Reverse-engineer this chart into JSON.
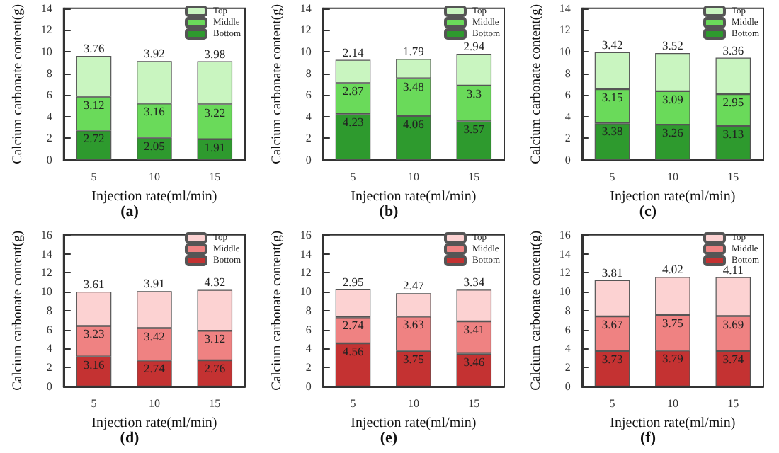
{
  "chart_data": [
    {
      "type": "bar",
      "title": "(a)",
      "xlabel": "Injection rate(ml/min)",
      "ylabel": "Calcium carbonate content(g)",
      "categories": [
        "5",
        "10",
        "15"
      ],
      "stacked": true,
      "data_labels": true,
      "legend": "top right",
      "grid": false,
      "ylim": [
        0,
        14
      ],
      "yticks": [
        0,
        2,
        4,
        6,
        8,
        10,
        12,
        14
      ],
      "series": [
        {
          "name": "Bottom",
          "color": "#2e9a2e",
          "values": [
            2.72,
            2.05,
            1.91
          ]
        },
        {
          "name": "Middle",
          "color": "#6ada5a",
          "values": [
            3.12,
            3.16,
            3.22
          ]
        },
        {
          "name": "Top",
          "color": "#c9f5c0",
          "values": [
            3.76,
            3.92,
            3.98
          ]
        }
      ]
    },
    {
      "type": "bar",
      "title": "(b)",
      "xlabel": "Injection rate(ml/min)",
      "ylabel": "Calcium carbonate content(g)",
      "categories": [
        "5",
        "10",
        "15"
      ],
      "stacked": true,
      "data_labels": true,
      "legend": "top right",
      "grid": false,
      "ylim": [
        0,
        14
      ],
      "yticks": [
        0,
        2,
        4,
        6,
        8,
        10,
        12,
        14
      ],
      "series": [
        {
          "name": "Bottom",
          "color": "#2e9a2e",
          "values": [
            4.23,
            4.06,
            3.57
          ]
        },
        {
          "name": "Middle",
          "color": "#6ada5a",
          "values": [
            2.87,
            3.48,
            3.3
          ]
        },
        {
          "name": "Top",
          "color": "#c9f5c0",
          "values": [
            2.14,
            1.79,
            2.94
          ]
        }
      ]
    },
    {
      "type": "bar",
      "title": "(c)",
      "xlabel": "Injection rate(ml/min)",
      "ylabel": "Calcium carbonate content(g)",
      "categories": [
        "5",
        "10",
        "15"
      ],
      "stacked": true,
      "data_labels": true,
      "legend": "top right",
      "grid": false,
      "ylim": [
        0,
        14
      ],
      "yticks": [
        0,
        2,
        4,
        6,
        8,
        10,
        12,
        14
      ],
      "series": [
        {
          "name": "Bottom",
          "color": "#2e9a2e",
          "values": [
            3.38,
            3.26,
            3.13
          ]
        },
        {
          "name": "Middle",
          "color": "#6ada5a",
          "values": [
            3.15,
            3.09,
            2.95
          ]
        },
        {
          "name": "Top",
          "color": "#c9f5c0",
          "values": [
            3.42,
            3.52,
            3.36
          ]
        }
      ]
    },
    {
      "type": "bar",
      "title": "(d)",
      "xlabel": "Injection rate(ml/min)",
      "ylabel": "Calcium carbonate content(g)",
      "categories": [
        "5",
        "10",
        "15"
      ],
      "stacked": true,
      "data_labels": true,
      "legend": "top right",
      "grid": false,
      "ylim": [
        0,
        16
      ],
      "yticks": [
        0,
        2,
        4,
        6,
        8,
        10,
        12,
        14,
        16
      ],
      "series": [
        {
          "name": "Bottom",
          "color": "#c43232",
          "values": [
            3.16,
            2.74,
            2.76
          ]
        },
        {
          "name": "Middle",
          "color": "#ef8282",
          "values": [
            3.23,
            3.42,
            3.12
          ]
        },
        {
          "name": "Top",
          "color": "#fcd2d2",
          "values": [
            3.61,
            3.91,
            4.32
          ]
        }
      ]
    },
    {
      "type": "bar",
      "title": "(e)",
      "xlabel": "Injection rate(ml/min)",
      "ylabel": "Calcium carbonate content(g)",
      "categories": [
        "5",
        "10",
        "15"
      ],
      "stacked": true,
      "data_labels": true,
      "legend": "top right",
      "grid": false,
      "ylim": [
        0,
        16
      ],
      "yticks": [
        0,
        2,
        4,
        6,
        8,
        10,
        12,
        14,
        16
      ],
      "series": [
        {
          "name": "Bottom",
          "color": "#c43232",
          "values": [
            4.56,
            3.75,
            3.46
          ]
        },
        {
          "name": "Middle",
          "color": "#ef8282",
          "values": [
            2.74,
            3.63,
            3.41
          ]
        },
        {
          "name": "Top",
          "color": "#fcd2d2",
          "values": [
            2.95,
            2.47,
            3.34
          ]
        }
      ]
    },
    {
      "type": "bar",
      "title": "(f)",
      "xlabel": "Injection rate(ml/min)",
      "ylabel": "Calcium carbonate content(g)",
      "categories": [
        "5",
        "10",
        "15"
      ],
      "stacked": true,
      "data_labels": true,
      "legend": "top right",
      "grid": false,
      "ylim": [
        0,
        16
      ],
      "yticks": [
        0,
        2,
        4,
        6,
        8,
        10,
        12,
        14,
        16
      ],
      "series": [
        {
          "name": "Bottom",
          "color": "#c43232",
          "values": [
            3.73,
            3.79,
            3.74
          ]
        },
        {
          "name": "Middle",
          "color": "#ef8282",
          "values": [
            3.67,
            3.75,
            3.69
          ]
        },
        {
          "name": "Top",
          "color": "#fcd2d2",
          "values": [
            3.81,
            4.02,
            4.11
          ]
        }
      ]
    }
  ]
}
